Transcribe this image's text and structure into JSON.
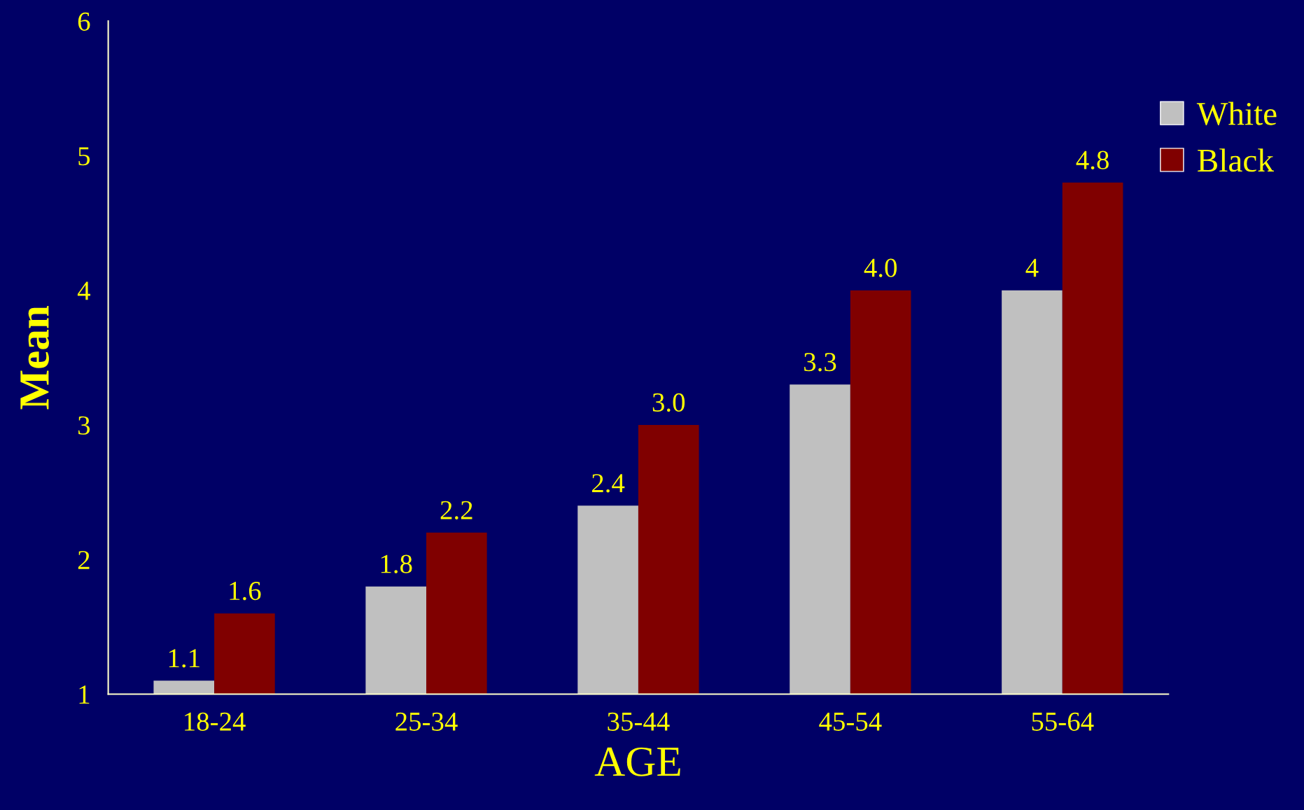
{
  "chart_data": {
    "type": "bar",
    "xlabel": "AGE",
    "ylabel": "Mean",
    "categories": [
      "18-24",
      "25-34",
      "35-44",
      "45-54",
      "55-64"
    ],
    "series": [
      {
        "name": "White",
        "color": "#c0c0c0",
        "values": [
          1.1,
          1.8,
          2.4,
          3.3,
          4
        ],
        "value_labels": [
          "1.1",
          "1.8",
          "2.4",
          "3.3",
          "4"
        ]
      },
      {
        "name": "Black",
        "color": "#800000",
        "values": [
          1.6,
          2.2,
          3.0,
          4.0,
          4.8
        ],
        "value_labels": [
          "1.6",
          "2.2",
          "3.0",
          "4.0",
          "4.8"
        ]
      }
    ],
    "ylim": [
      1,
      6
    ],
    "yticks": [
      1,
      2,
      3,
      4,
      5,
      6
    ],
    "grid": false,
    "legend": "right"
  }
}
